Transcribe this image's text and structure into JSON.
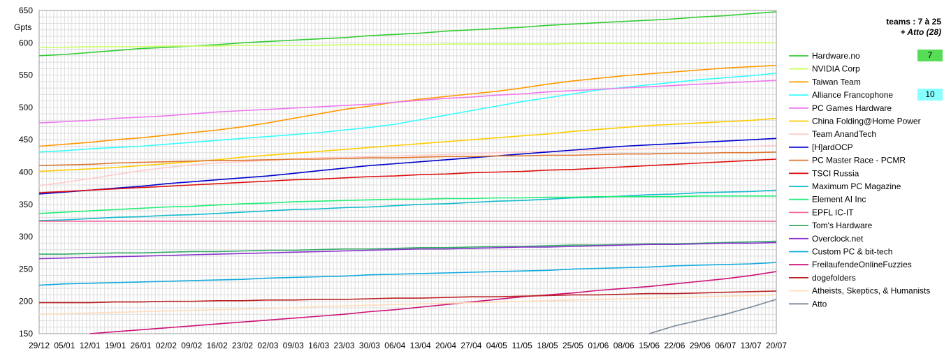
{
  "chart_data": {
    "type": "line",
    "ylabel": "Gpts",
    "ylim": [
      150,
      650
    ],
    "yticks": [
      150,
      200,
      250,
      300,
      350,
      400,
      450,
      500,
      550,
      600,
      650
    ],
    "x": [
      "29/12",
      "05/01",
      "12/01",
      "19/01",
      "26/01",
      "02/02",
      "09/02",
      "16/02",
      "23/02",
      "02/03",
      "09/03",
      "16/03",
      "23/03",
      "30/03",
      "06/04",
      "13/04",
      "20/04",
      "27/04",
      "04/05",
      "11/05",
      "18/05",
      "25/05",
      "01/06",
      "08/06",
      "15/06",
      "22/06",
      "29/06",
      "06/07",
      "13/07",
      "20/07"
    ],
    "grid": true,
    "legend_position": "right",
    "side_title": {
      "line1": "teams : 7 à 25",
      "line2": "+ Atto (28)"
    },
    "boxes": [
      {
        "label": "7",
        "color": "#55dd55",
        "beside": "Hardware.no"
      },
      {
        "label": "10",
        "color": "#88ffff",
        "beside": "Alliance Francophone"
      }
    ],
    "series": [
      {
        "name": "Hardware.no",
        "color": "#33cc33",
        "values": [
          580,
          582,
          585,
          588,
          591,
          593,
          595,
          597,
          600,
          602,
          604,
          606,
          608,
          611,
          613,
          615,
          618,
          620,
          622,
          624,
          627,
          629,
          631,
          633,
          635,
          637,
          640,
          642,
          645,
          648
        ]
      },
      {
        "name": "NVIDIA Corp",
        "color": "#ccff66",
        "values": [
          593,
          593,
          594,
          594,
          594,
          595,
          595,
          595,
          596,
          596,
          596,
          596,
          597,
          597,
          597,
          597,
          598,
          598,
          598,
          598,
          598,
          599,
          599,
          599,
          599,
          599,
          599,
          600,
          600,
          600
        ]
      },
      {
        "name": "Taiwan Team",
        "color": "#ff9900",
        "values": [
          440,
          443,
          446,
          450,
          453,
          457,
          461,
          465,
          470,
          476,
          483,
          490,
          497,
          502,
          508,
          513,
          517,
          521,
          525,
          530,
          536,
          541,
          545,
          549,
          552,
          555,
          558,
          561,
          563,
          565
        ]
      },
      {
        "name": "Alliance Francophone",
        "color": "#33ffff",
        "values": [
          431,
          433,
          436,
          438,
          440,
          443,
          446,
          449,
          452,
          455,
          458,
          461,
          465,
          469,
          474,
          481,
          488,
          495,
          502,
          509,
          515,
          521,
          527,
          531,
          535,
          539,
          543,
          546,
          549,
          553
        ]
      },
      {
        "name": "PC Games Hardware",
        "color": "#ee77ee",
        "values": [
          476,
          478,
          480,
          483,
          485,
          487,
          490,
          493,
          495,
          497,
          499,
          501,
          503,
          505,
          508,
          511,
          514,
          516,
          519,
          521,
          524,
          526,
          528,
          530,
          532,
          534,
          536,
          538,
          540,
          542
        ]
      },
      {
        "name": "China Folding@Home Power",
        "color": "#ffcc00",
        "values": [
          401,
          403,
          405,
          407,
          410,
          413,
          416,
          419,
          423,
          426,
          429,
          432,
          435,
          438,
          441,
          444,
          447,
          450,
          453,
          456,
          459,
          463,
          466,
          469,
          472,
          474,
          476,
          478,
          480,
          483
        ]
      },
      {
        "name": "Team AnandTech",
        "color": "#ffcccc",
        "values": [
          379,
          384,
          390,
          396,
          402,
          407,
          411,
          414,
          416,
          418,
          420,
          422,
          423,
          424,
          425,
          426,
          427,
          428,
          430,
          431,
          432,
          433,
          434,
          435,
          436,
          437,
          438,
          439,
          440,
          441
        ]
      },
      {
        "name": "[H]ardOCP",
        "color": "#0000cc",
        "values": [
          366,
          369,
          372,
          375,
          378,
          382,
          385,
          388,
          391,
          394,
          398,
          402,
          406,
          410,
          413,
          416,
          419,
          422,
          425,
          428,
          431,
          434,
          437,
          440,
          442,
          444,
          446,
          448,
          450,
          452
        ]
      },
      {
        "name": "PC Master Race - PCMR",
        "color": "#dd7733",
        "values": [
          410,
          411,
          412,
          414,
          415,
          416,
          417,
          418,
          418,
          419,
          420,
          420,
          421,
          422,
          422,
          423,
          424,
          424,
          425,
          425,
          426,
          426,
          427,
          428,
          428,
          429,
          429,
          430,
          430,
          431
        ]
      },
      {
        "name": "TSCI Russia",
        "color": "#dd1111",
        "values": [
          368,
          370,
          372,
          374,
          376,
          378,
          380,
          382,
          384,
          386,
          388,
          389,
          391,
          393,
          394,
          396,
          397,
          399,
          400,
          401,
          403,
          404,
          406,
          408,
          410,
          412,
          414,
          416,
          418,
          420
        ]
      },
      {
        "name": "Maximum PC Magazine",
        "color": "#11bbcc",
        "values": [
          325,
          326,
          328,
          330,
          331,
          333,
          334,
          336,
          338,
          340,
          342,
          343,
          345,
          346,
          348,
          350,
          351,
          353,
          355,
          356,
          358,
          360,
          361,
          363,
          365,
          366,
          368,
          369,
          370,
          372
        ]
      },
      {
        "name": "Element AI Inc",
        "color": "#22ee77",
        "values": [
          336,
          338,
          340,
          342,
          344,
          346,
          347,
          349,
          351,
          352,
          354,
          355,
          356,
          357,
          358,
          358,
          359,
          359,
          360,
          360,
          361,
          361,
          362,
          362,
          362,
          362,
          363,
          363,
          363,
          363
        ]
      },
      {
        "name": "EPFL IC-IT",
        "color": "#ee6699",
        "values": [
          324,
          324,
          324,
          324,
          324,
          324,
          324,
          324,
          324,
          324,
          324,
          324,
          324,
          324,
          324,
          324,
          324,
          324,
          324,
          324,
          324,
          324,
          324,
          324,
          324,
          324,
          324,
          324,
          324,
          324
        ]
      },
      {
        "name": "Tom's Hardware",
        "color": "#33aa66",
        "values": [
          273,
          273,
          274,
          275,
          275,
          276,
          277,
          277,
          278,
          279,
          279,
          280,
          281,
          281,
          282,
          283,
          283,
          284,
          285,
          285,
          286,
          287,
          287,
          288,
          289,
          289,
          290,
          291,
          292,
          293
        ]
      },
      {
        "name": "Overclock.net",
        "color": "#8833cc",
        "values": [
          266,
          267,
          268,
          269,
          270,
          271,
          272,
          273,
          274,
          275,
          276,
          277,
          278,
          279,
          280,
          281,
          281,
          282,
          283,
          284,
          284,
          285,
          286,
          287,
          288,
          288,
          289,
          290,
          290,
          291
        ]
      },
      {
        "name": "Custom PC & bit-tech",
        "color": "#11aadd",
        "values": [
          225,
          227,
          228,
          229,
          230,
          231,
          232,
          233,
          234,
          236,
          237,
          238,
          239,
          241,
          242,
          243,
          244,
          245,
          246,
          247,
          248,
          250,
          251,
          252,
          253,
          255,
          256,
          257,
          258,
          260
        ]
      },
      {
        "name": "FreilaufendeOnlineFuzzies",
        "color": "#cc1177",
        "values": [
          null,
          null,
          150,
          153,
          156,
          159,
          162,
          165,
          168,
          171,
          174,
          177,
          180,
          184,
          187,
          191,
          195,
          199,
          203,
          207,
          210,
          213,
          217,
          220,
          223,
          227,
          231,
          235,
          240,
          246
        ]
      },
      {
        "name": "dogefolders",
        "color": "#bb2222",
        "values": [
          198,
          198,
          198,
          199,
          199,
          200,
          200,
          201,
          201,
          202,
          202,
          203,
          203,
          204,
          205,
          205,
          206,
          207,
          207,
          208,
          209,
          210,
          210,
          211,
          212,
          212,
          213,
          214,
          215,
          216
        ]
      },
      {
        "name": "Atheists, Skeptics, & Humanists",
        "color": "#ffddbb",
        "values": [
          180,
          181,
          182,
          183,
          184,
          185,
          186,
          187,
          188,
          189,
          190,
          192,
          193,
          194,
          195,
          196,
          197,
          198,
          199,
          200,
          201,
          202,
          203,
          204,
          205,
          206,
          207,
          208,
          209,
          210
        ]
      },
      {
        "name": "Atto",
        "color": "#778899",
        "values": [
          null,
          null,
          null,
          null,
          null,
          null,
          null,
          null,
          null,
          null,
          null,
          null,
          null,
          null,
          null,
          null,
          null,
          null,
          null,
          null,
          null,
          null,
          null,
          null,
          150,
          162,
          171,
          180,
          191,
          203
        ]
      }
    ]
  }
}
